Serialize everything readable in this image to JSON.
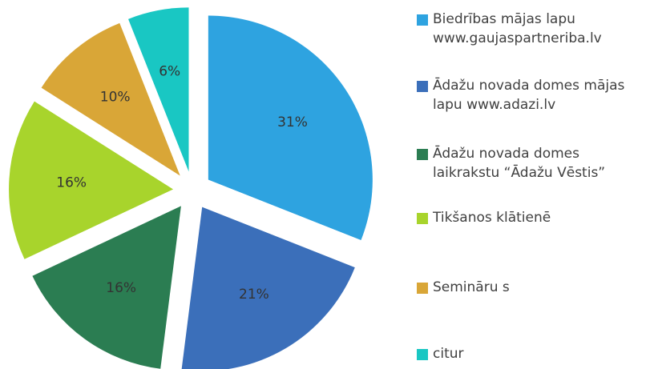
{
  "chart_data": {
    "type": "pie",
    "categories": [
      "Biedrības mājas lapu www.gaujaspartneriba.lv",
      "Ādažu novada domes mājas lapu www.adazi.lv",
      "Ādažu novada domes laikrakstu “Ādažu Vēstis”",
      "Tikšanos klātienē",
      "Semināru s",
      "citur"
    ],
    "values": [
      31,
      21,
      16,
      16,
      10,
      6
    ],
    "value_labels": [
      "31%",
      "21%",
      "16%",
      "16%",
      "10%",
      "6%"
    ],
    "colors": [
      "#2ea3e0",
      "#3b6fba",
      "#2b7d52",
      "#a8d42c",
      "#d9a637",
      "#19c7c3"
    ],
    "legend": "right"
  }
}
